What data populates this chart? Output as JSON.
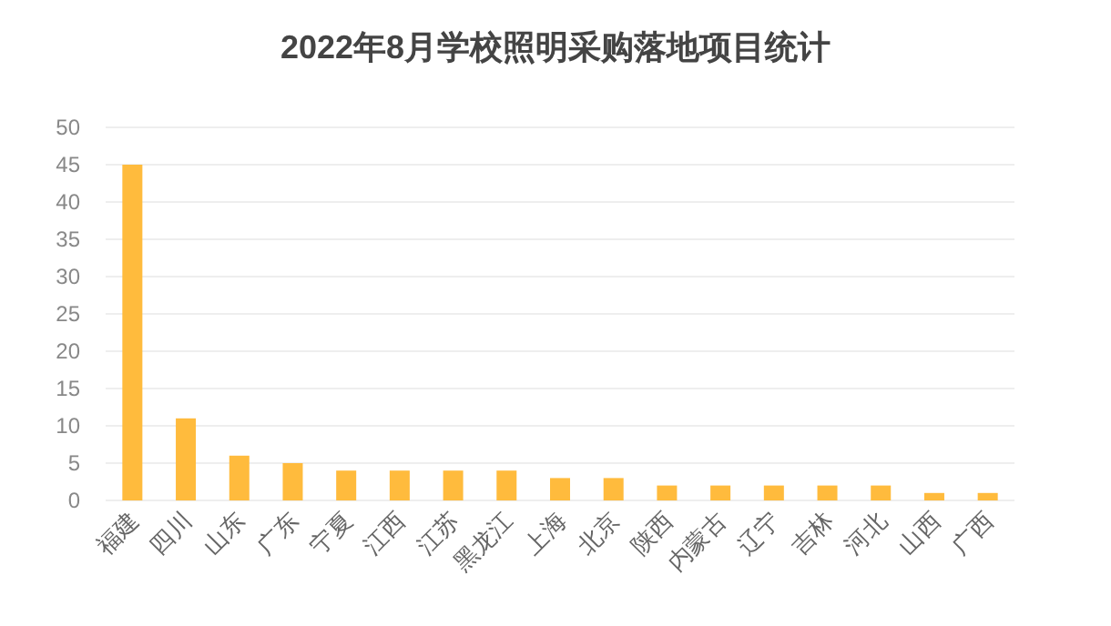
{
  "chart_data": {
    "type": "bar",
    "title": "2022年8月学校照明采购落地项目统计",
    "categories": [
      "福建",
      "四川",
      "山东",
      "广东",
      "宁夏",
      "江西",
      "江苏",
      "黑龙江",
      "上海",
      "北京",
      "陕西",
      "内蒙古",
      "辽宁",
      "吉林",
      "河北",
      "山西",
      "广西"
    ],
    "values": [
      45,
      11,
      6,
      5,
      4,
      4,
      4,
      4,
      3,
      3,
      2,
      2,
      2,
      2,
      2,
      1,
      1
    ],
    "color": "#ffbb3d",
    "ylim": [
      0,
      50
    ],
    "yticks": [
      0,
      5,
      10,
      15,
      20,
      25,
      30,
      35,
      40,
      45,
      50
    ],
    "grid": "y"
  }
}
